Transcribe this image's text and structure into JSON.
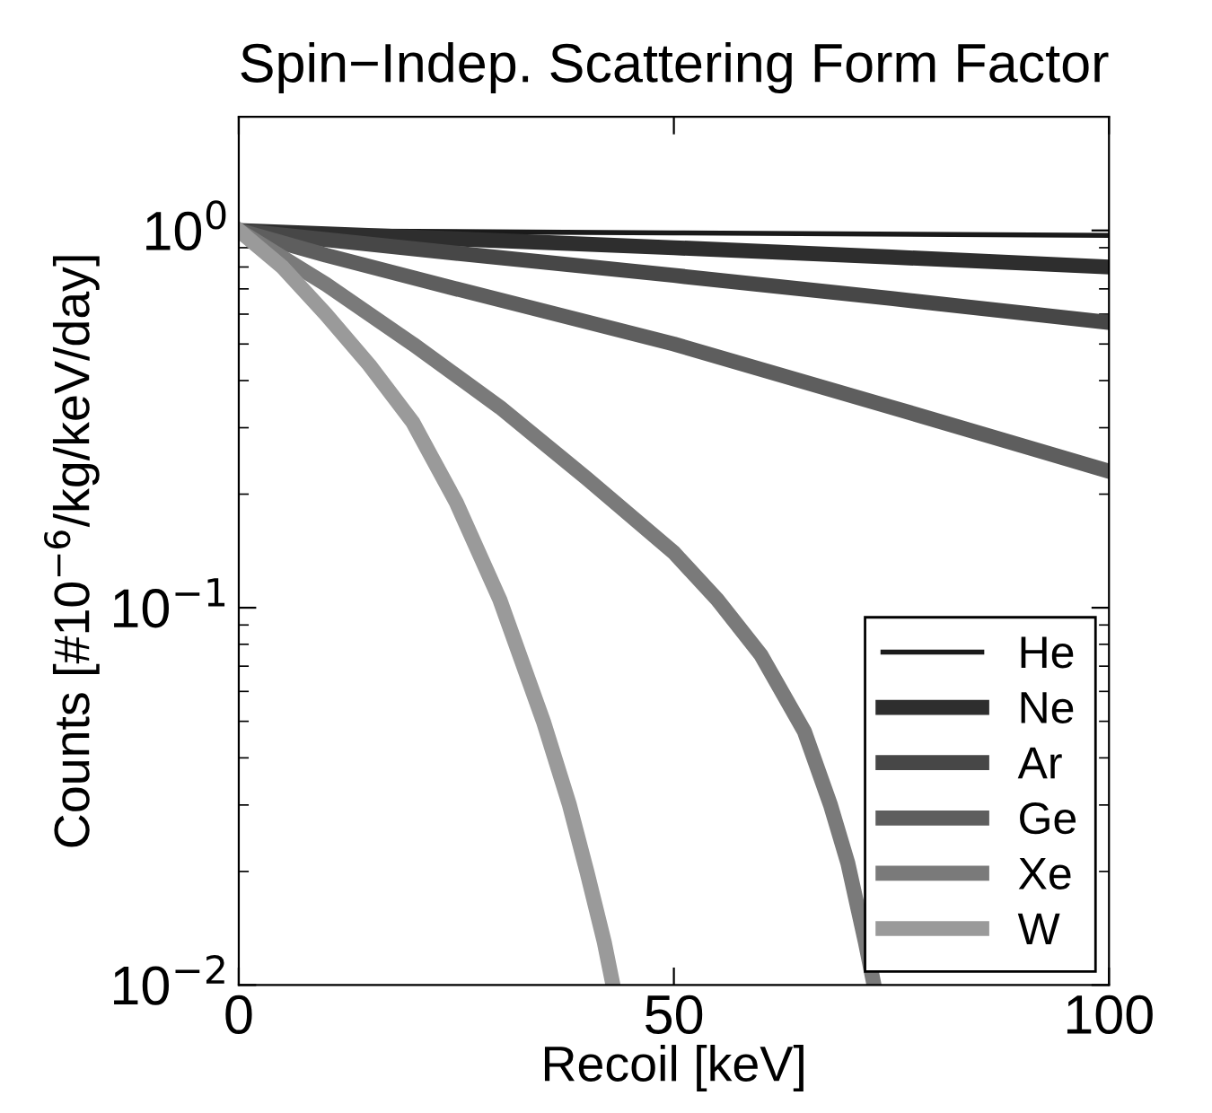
{
  "chart_data": {
    "type": "line",
    "title": "Spin−Indep. Scattering Form Factor",
    "xlabel": "Recoil [keV]",
    "ylabel": "Counts [#10$^{−6}$/kg/keV/day]",
    "log": "y",
    "xlim": [
      0,
      100
    ],
    "ylim": [
      0.01,
      2
    ],
    "xticks": [
      0,
      50,
      100
    ],
    "yticks": [
      {
        "value": 0.01,
        "label": "10$^{−2}$"
      },
      {
        "value": 0.1,
        "label": "10$^{−1}$"
      },
      {
        "value": 1,
        "label": "10$^{0}$"
      }
    ],
    "grid": false,
    "legend": "bottom right",
    "marker": "none",
    "line_style": "solid",
    "series": [
      {
        "name": "He",
        "color": "#1a1a1a",
        "x": [
          0,
          50,
          100
        ],
        "values": [
          1,
          0.985,
          0.97
        ]
      },
      {
        "name": "Ne",
        "color": "#2e2e2e",
        "x": [
          0,
          25,
          50,
          75,
          100
        ],
        "values": [
          1,
          0.95,
          0.9,
          0.85,
          0.8
        ]
      },
      {
        "name": "Ar",
        "color": "#474747",
        "x": [
          0,
          25,
          50,
          75,
          100
        ],
        "values": [
          1,
          0.87,
          0.76,
          0.66,
          0.57
        ]
      },
      {
        "name": "Ge",
        "color": "#5e5e5e",
        "x": [
          0,
          10,
          25,
          50,
          75,
          100
        ],
        "values": [
          1,
          0.86,
          0.7,
          0.5,
          0.34,
          0.23
        ]
      },
      {
        "name": "Xe",
        "color": "#7a7a7a",
        "x": [
          0,
          10,
          20,
          30,
          40,
          50,
          55,
          60,
          65,
          68,
          70,
          72,
          73
        ],
        "values": [
          1,
          0.72,
          0.5,
          0.34,
          0.22,
          0.14,
          0.105,
          0.075,
          0.047,
          0.03,
          0.021,
          0.013,
          0.01
        ]
      },
      {
        "name": "W",
        "color": "#9a9a9a",
        "x": [
          0,
          5,
          10,
          15,
          20,
          25,
          30,
          35,
          38,
          40,
          42,
          43
        ],
        "values": [
          1,
          0.8,
          0.6,
          0.44,
          0.31,
          0.19,
          0.105,
          0.05,
          0.03,
          0.02,
          0.013,
          0.01
        ]
      }
    ]
  }
}
